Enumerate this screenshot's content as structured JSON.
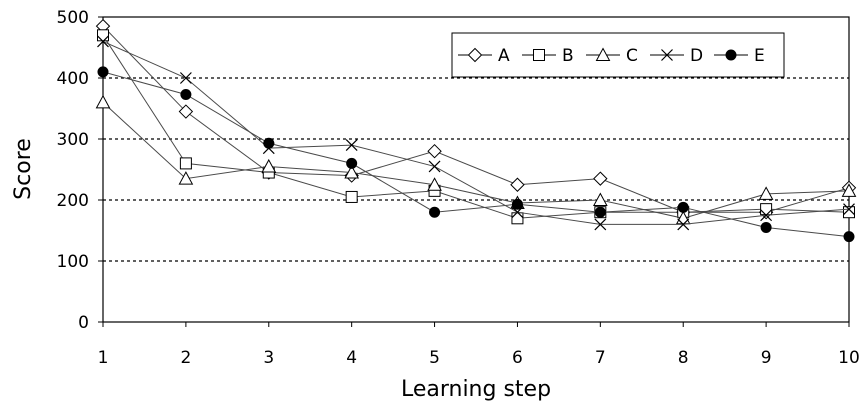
{
  "chart_data": {
    "type": "line",
    "title": "",
    "xlabel": "Learning step",
    "ylabel": "Score",
    "x": [
      1,
      2,
      3,
      4,
      5,
      6,
      7,
      8,
      9,
      10
    ],
    "xlim": [
      1,
      10
    ],
    "ylim": [
      0,
      500
    ],
    "yticks": [
      0,
      100,
      200,
      300,
      400,
      500
    ],
    "grid": "horizontal dotted",
    "legend_position": "top-right",
    "series": [
      {
        "name": "A",
        "marker": "diamond-open",
        "values": [
          485,
          345,
          245,
          240,
          280,
          225,
          235,
          180,
          180,
          220
        ]
      },
      {
        "name": "B",
        "marker": "square-open",
        "values": [
          470,
          260,
          245,
          205,
          215,
          170,
          180,
          180,
          185,
          180
        ]
      },
      {
        "name": "C",
        "marker": "triangle-open",
        "values": [
          360,
          235,
          255,
          245,
          225,
          195,
          200,
          170,
          210,
          215
        ]
      },
      {
        "name": "D",
        "marker": "cross",
        "values": [
          460,
          400,
          285,
          290,
          255,
          180,
          160,
          160,
          175,
          185
        ]
      },
      {
        "name": "E",
        "marker": "circle-filled",
        "values": [
          410,
          373,
          293,
          260,
          180,
          193,
          180,
          188,
          155,
          140
        ]
      }
    ]
  }
}
